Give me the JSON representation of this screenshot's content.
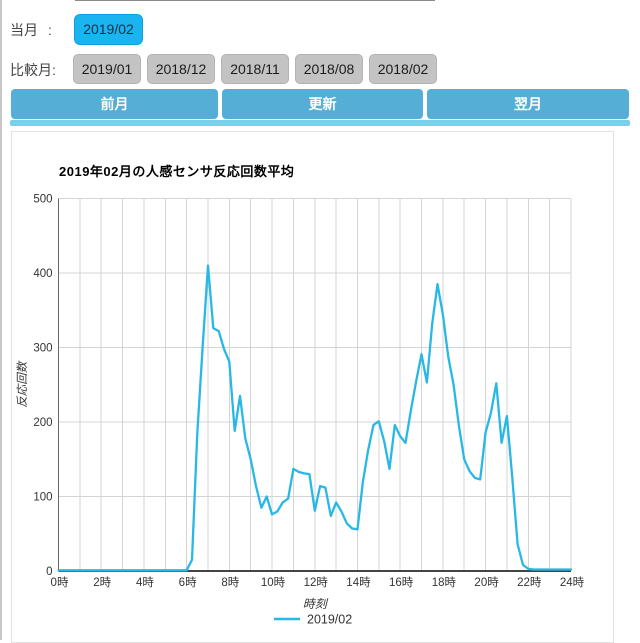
{
  "page": {
    "current_label": "当月",
    "current_colon": ":",
    "current_month": "2019/02",
    "compare_label": "比較月:",
    "compare_months": [
      "2019/01",
      "2018/12",
      "2018/11",
      "2018/08",
      "2018/02"
    ],
    "nav": {
      "prev": "前月",
      "update": "更新",
      "next": "翌月"
    }
  },
  "colors": {
    "accent_selected": "#1ab5f1",
    "nav_button": "#54aed5",
    "divider": "#7ccfea",
    "compare_button": "#c3c3c3",
    "series_line": "#29b8e5",
    "grid": "#d4d4d4",
    "axis_y": "#666666",
    "axis_x": "#444444",
    "tick_text": "#333333"
  },
  "chart_data": {
    "type": "line",
    "title": "2019年02月の人感センサ反応回数平均",
    "xlabel": "時刻",
    "ylabel": "反応回数",
    "legend_position": "bottom-center",
    "grid": true,
    "xlim": [
      0,
      24
    ],
    "ylim": [
      0,
      500
    ],
    "y_ticks": [
      0,
      100,
      200,
      300,
      400,
      500
    ],
    "x_tick_labels": [
      "0時",
      "2時",
      "4時",
      "6時",
      "8時",
      "10時",
      "12時",
      "14時",
      "16時",
      "18時",
      "20時",
      "22時",
      "24時"
    ],
    "x_tick_hours": [
      0,
      2,
      4,
      6,
      8,
      10,
      12,
      14,
      16,
      18,
      20,
      22,
      24
    ],
    "x_start_hour": 0,
    "x_interval_minutes": 15,
    "series": [
      {
        "name": "2019/02",
        "color": "#29b8e5",
        "values": [
          1,
          1,
          1,
          1,
          1,
          1,
          1,
          1,
          1,
          1,
          1,
          1,
          1,
          1,
          1,
          1,
          1,
          1,
          1,
          1,
          1,
          1,
          1,
          1,
          1,
          15,
          185,
          300,
          410,
          326,
          322,
          298,
          281,
          188,
          235,
          178,
          150,
          114,
          85,
          100,
          76,
          80,
          92,
          97,
          137,
          133,
          131,
          130,
          81,
          114,
          112,
          74,
          92,
          80,
          64,
          57,
          56,
          119,
          162,
          196,
          201,
          174,
          137,
          196,
          181,
          172,
          215,
          255,
          291,
          253,
          332,
          385,
          344,
          288,
          250,
          195,
          150,
          134,
          125,
          123,
          186,
          212,
          252,
          172,
          208,
          125,
          36,
          8,
          3,
          2,
          2,
          2,
          2,
          2,
          2,
          2,
          2
        ]
      }
    ]
  }
}
